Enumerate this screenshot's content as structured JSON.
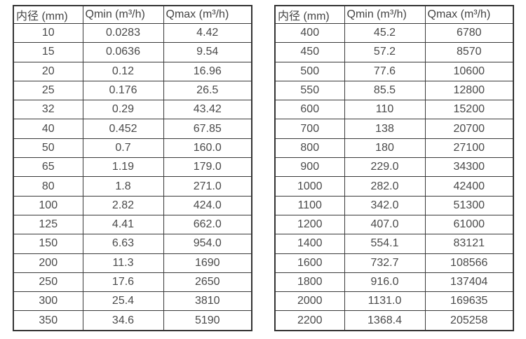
{
  "page": {
    "background": "#ffffff",
    "border_color": "#333333",
    "text_color": "#4a4a4a"
  },
  "tables": [
    {
      "name": "flow-table-small-diameters",
      "headers": [
        "内径 (mm)",
        "Qmin (m³/h)",
        "Qmax (m³/h)"
      ],
      "rows": [
        [
          "10",
          "0.0283",
          "4.42"
        ],
        [
          "15",
          "0.0636",
          "9.54"
        ],
        [
          "20",
          "0.12",
          "16.96"
        ],
        [
          "25",
          "0.176",
          "26.5"
        ],
        [
          "32",
          "0.29",
          "43.42"
        ],
        [
          "40",
          "0.452",
          "67.85"
        ],
        [
          "50",
          "0.7",
          "160.0"
        ],
        [
          "65",
          "1.19",
          "179.0"
        ],
        [
          "80",
          "1.8",
          "271.0"
        ],
        [
          "100",
          "2.82",
          "424.0"
        ],
        [
          "125",
          "4.41",
          "662.0"
        ],
        [
          "150",
          "6.63",
          "954.0"
        ],
        [
          "200",
          "11.3",
          "1690"
        ],
        [
          "250",
          "17.6",
          "2650"
        ],
        [
          "300",
          "25.4",
          "3810"
        ],
        [
          "350",
          "34.6",
          "5190"
        ]
      ]
    },
    {
      "name": "flow-table-large-diameters",
      "headers": [
        "内径 (mm)",
        "Qmin (m³/h)",
        "Qmax (m³/h)"
      ],
      "rows": [
        [
          "400",
          "45.2",
          "6780"
        ],
        [
          "450",
          "57.2",
          "8570"
        ],
        [
          "500",
          "77.6",
          "10600"
        ],
        [
          "550",
          "85.5",
          "12800"
        ],
        [
          "600",
          "110",
          "15200"
        ],
        [
          "700",
          "138",
          "20700"
        ],
        [
          "800",
          "180",
          "27100"
        ],
        [
          "900",
          "229.0",
          "34300"
        ],
        [
          "1000",
          "282.0",
          "42400"
        ],
        [
          "1100",
          "342.0",
          "51300"
        ],
        [
          "1200",
          "407.0",
          "61000"
        ],
        [
          "1400",
          "554.1",
          "83121"
        ],
        [
          "1600",
          "732.7",
          "108566"
        ],
        [
          "1800",
          "916.0",
          "137404"
        ],
        [
          "2000",
          "1131.0",
          "169635"
        ],
        [
          "2200",
          "1368.4",
          "205258"
        ]
      ]
    }
  ]
}
